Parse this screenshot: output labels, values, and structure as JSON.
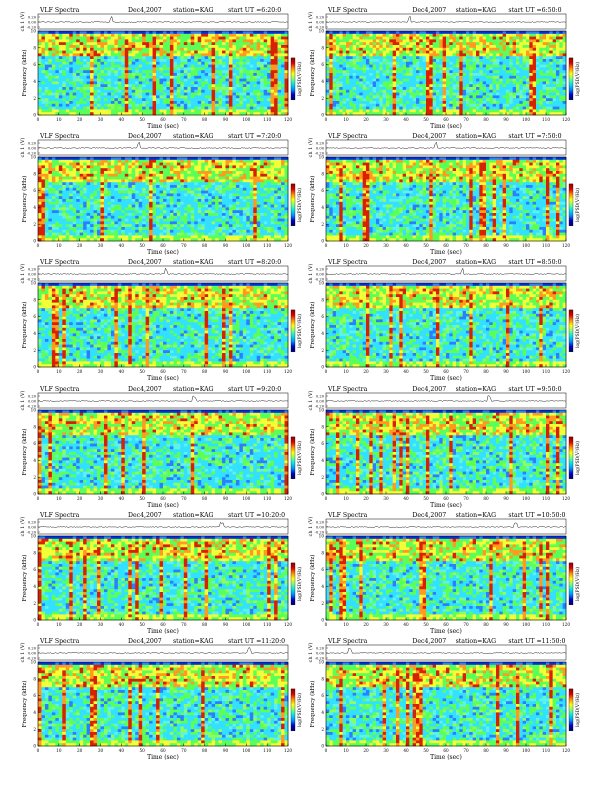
{
  "colorbar_colors": [
    "#8a0000",
    "#e00000",
    "#ff8c00",
    "#ffff00",
    "#7cff7c",
    "#00e5e5",
    "#0090ff",
    "#0000c8",
    "#00006a"
  ],
  "colorbar_label": "log",
  "axes_labels": {
    "xlabel": "Time  (sec)",
    "ch_label": "ch 1 (V)",
    "freq_label_left": "Frequency (kHz)",
    "freq_label_right": "Frequency (kHz)",
    "cb_label": "log(PSD(V²/Hz)"
  },
  "chart_data": [
    {
      "type": "heatmap",
      "title": "VLF Spectra",
      "date": "Dec4,2007",
      "station": "station=KAG",
      "start": "start  UT =6:20:0",
      "xlabel": "Time  (sec)",
      "ylabel": "Frequency (kHz)",
      "xlim": [
        0,
        120
      ],
      "ylim": [
        0,
        10
      ],
      "x_ticks": [
        0,
        10,
        20,
        30,
        40,
        50,
        60,
        70,
        80,
        90,
        100,
        110,
        120
      ],
      "y_ticks": [
        0,
        2,
        4,
        6,
        8,
        10
      ],
      "waveform_ticks": [
        "0.20",
        "0.00",
        "-0.20"
      ]
    },
    {
      "type": "heatmap",
      "title": "VLF Spectra",
      "date": "Dec4,2007",
      "station": "station=KAG",
      "start": "start  UT =6:50:0",
      "xlabel": "Time  (sec)",
      "ylabel": "Frequency (kHz)",
      "xlim": [
        0,
        120
      ],
      "ylim": [
        0,
        10
      ],
      "x_ticks": [
        0,
        10,
        20,
        30,
        40,
        50,
        60,
        70,
        80,
        90,
        100,
        110,
        120
      ],
      "y_ticks": [
        0,
        2,
        4,
        6,
        8,
        10
      ],
      "waveform_ticks": [
        "0.20",
        "0.00",
        "-0.20"
      ]
    },
    {
      "type": "heatmap",
      "title": "VLF Spectra",
      "date": "Dec4,2007",
      "station": "station=KAG",
      "start": "start  UT =7:20:0",
      "xlabel": "Time  (sec)",
      "ylabel": "Frequency (kHz)",
      "xlim": [
        0,
        120
      ],
      "ylim": [
        0,
        10
      ],
      "x_ticks": [
        0,
        10,
        20,
        30,
        40,
        50,
        60,
        70,
        80,
        90,
        100,
        110,
        120
      ],
      "y_ticks": [
        0,
        2,
        4,
        6,
        8,
        10
      ],
      "waveform_ticks": [
        "0.20",
        "0.00",
        "-0.20"
      ]
    },
    {
      "type": "heatmap",
      "title": "VLF Spectra",
      "date": "Dec4,2007",
      "station": "station=KAG",
      "start": "start  UT =7:50:0",
      "xlabel": "Time  (sec)",
      "ylabel": "Frequency (kHz)",
      "xlim": [
        0,
        120
      ],
      "ylim": [
        0,
        10
      ],
      "x_ticks": [
        0,
        10,
        20,
        30,
        40,
        50,
        60,
        70,
        80,
        90,
        100,
        110,
        120
      ],
      "y_ticks": [
        0,
        2,
        4,
        6,
        8,
        10
      ],
      "waveform_ticks": [
        "0.20",
        "0.00",
        "-0.20"
      ]
    },
    {
      "type": "heatmap",
      "title": "VLF Spectra",
      "date": "Dec4,2007",
      "station": "station=KAG",
      "start": "start  UT =8:20:0",
      "xlabel": "Time  (sec)",
      "ylabel": "Frequency (kHz)",
      "xlim": [
        0,
        120
      ],
      "ylim": [
        0,
        10
      ],
      "x_ticks": [
        0,
        10,
        20,
        30,
        40,
        50,
        60,
        70,
        80,
        90,
        100,
        110,
        120
      ],
      "y_ticks": [
        0,
        2,
        4,
        6,
        8,
        10
      ],
      "waveform_ticks": [
        "0.20",
        "0.00",
        "-0.20"
      ]
    },
    {
      "type": "heatmap",
      "title": "VLF Spectra",
      "date": "Dec4,2007",
      "station": "station=KAG",
      "start": "start  UT =8:50:0",
      "xlabel": "Time  (sec)",
      "ylabel": "Frequency (kHz)",
      "xlim": [
        0,
        120
      ],
      "ylim": [
        0,
        10
      ],
      "x_ticks": [
        0,
        10,
        20,
        30,
        40,
        50,
        60,
        70,
        80,
        90,
        100,
        110,
        120
      ],
      "y_ticks": [
        0,
        2,
        4,
        6,
        8,
        10
      ],
      "waveform_ticks": [
        "0.20",
        "0.00",
        "-0.20"
      ]
    },
    {
      "type": "heatmap",
      "title": "VLF Spectra",
      "date": "Dec4,2007",
      "station": "station=KAG",
      "start": "start  UT =9:20:0",
      "xlabel": "Time  (sec)",
      "ylabel": "Frequency (kHz)",
      "xlim": [
        0,
        120
      ],
      "ylim": [
        0,
        10
      ],
      "x_ticks": [
        0,
        10,
        20,
        30,
        40,
        50,
        60,
        70,
        80,
        90,
        100,
        110,
        120
      ],
      "y_ticks": [
        0,
        2,
        4,
        6,
        8,
        10
      ],
      "waveform_ticks": [
        "0.20",
        "0.00",
        "-0.20"
      ]
    },
    {
      "type": "heatmap",
      "title": "VLF Spectra",
      "date": "Dec4,2007",
      "station": "station=KAG",
      "start": "start  UT =9:50:0",
      "xlabel": "Time  (sec)",
      "ylabel": "Frequency (kHz)",
      "xlim": [
        0,
        120
      ],
      "ylim": [
        0,
        10
      ],
      "x_ticks": [
        0,
        10,
        20,
        30,
        40,
        50,
        60,
        70,
        80,
        90,
        100,
        110,
        120
      ],
      "y_ticks": [
        0,
        2,
        4,
        6,
        8,
        10
      ],
      "waveform_ticks": [
        "0.20",
        "0.00",
        "-0.20"
      ]
    },
    {
      "type": "heatmap",
      "title": "VLF Spectra",
      "date": "Dec4,2007",
      "station": "station=KAG",
      "start": "start  UT =10:20:0",
      "xlabel": "Time  (sec)",
      "ylabel": "Frequency (kHz)",
      "xlim": [
        0,
        120
      ],
      "ylim": [
        0,
        10
      ],
      "x_ticks": [
        0,
        10,
        20,
        30,
        40,
        50,
        60,
        70,
        80,
        90,
        100,
        110,
        120
      ],
      "y_ticks": [
        0,
        2,
        4,
        6,
        8,
        10
      ],
      "waveform_ticks": [
        "0.20",
        "0.00",
        "-0.20"
      ]
    },
    {
      "type": "heatmap",
      "title": "VLF Spectra",
      "date": "Dec4,2007",
      "station": "station=KAG",
      "start": "start  UT =10:50:0",
      "xlabel": "Time  (sec)",
      "ylabel": "Frequency (kHz)",
      "xlim": [
        0,
        120
      ],
      "ylim": [
        0,
        10
      ],
      "x_ticks": [
        0,
        10,
        20,
        30,
        40,
        50,
        60,
        70,
        80,
        90,
        100,
        110,
        120
      ],
      "y_ticks": [
        0,
        2,
        4,
        6,
        8,
        10
      ],
      "waveform_ticks": [
        "0.20",
        "0.00",
        "-0.20"
      ]
    },
    {
      "type": "heatmap",
      "title": "VLF Spectra",
      "date": "Dec4,2007",
      "station": "station=KAG",
      "start": "start  UT =11:20:0",
      "xlabel": "Time  (sec)",
      "ylabel": "Frequency (kHz)",
      "xlim": [
        0,
        120
      ],
      "ylim": [
        0,
        10
      ],
      "x_ticks": [
        0,
        10,
        20,
        30,
        40,
        50,
        60,
        70,
        80,
        90,
        100,
        110,
        120
      ],
      "y_ticks": [
        0,
        2,
        4,
        6,
        8,
        10
      ],
      "waveform_ticks": [
        "0.20",
        "0.00",
        "-0.20"
      ]
    },
    {
      "type": "heatmap",
      "title": "VLF Spectra",
      "date": "Dec4,2007",
      "station": "station=KAG",
      "start": "start  UT =11:50:0",
      "xlabel": "Time  (sec)",
      "ylabel": "Frequency (kHz)",
      "xlim": [
        0,
        120
      ],
      "ylim": [
        0,
        10
      ],
      "x_ticks": [
        0,
        10,
        20,
        30,
        40,
        50,
        60,
        70,
        80,
        90,
        100,
        110,
        120
      ],
      "y_ticks": [
        0,
        2,
        4,
        6,
        8,
        10
      ],
      "waveform_ticks": [
        "0.20",
        "0.00",
        "-0.20"
      ]
    }
  ]
}
